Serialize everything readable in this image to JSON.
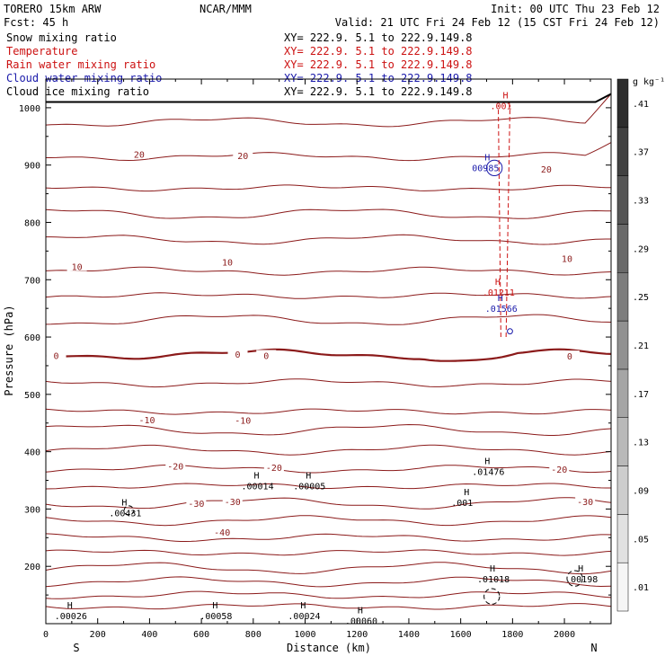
{
  "header": {
    "model": "TORERO  15km ARW",
    "forecast": "Fcst:   45 h",
    "org": "NCAR/MMM",
    "init": "Init: 00 UTC Thu 23 Feb 12",
    "valid": "Valid: 21 UTC Fri 24 Feb 12 (15 CST Fri 24 Feb 12)"
  },
  "legend": [
    {
      "name": "Snow mixing ratio",
      "xy": "XY= 222.9.  5.1 to 222.9.149.8",
      "color": "#000000"
    },
    {
      "name": "Temperature",
      "xy": "XY= 222.9.  5.1 to 222.9.149.8",
      "color": "#cc1111"
    },
    {
      "name": "Rain water mixing ratio",
      "xy": "XY= 222.9.  5.1 to 222.9.149.8",
      "color": "#cc1111"
    },
    {
      "name": "Cloud water mixing ratio",
      "xy": "XY= 222.9.  5.1 to 222.9.149.8",
      "color": "#1a1aaa"
    },
    {
      "name": "Cloud ice mixing ratio",
      "xy": "XY= 222.9.  5.1 to 222.9.149.8",
      "color": "#000000"
    }
  ],
  "chart_data": {
    "type": "cross-section",
    "xlabel": "Distance (km)",
    "ylabel": "Pressure (hPa)",
    "xlim": [
      0,
      2180
    ],
    "ylim": [
      1050,
      100
    ],
    "xticks": [
      0,
      200,
      400,
      600,
      800,
      1000,
      1200,
      1400,
      1600,
      1800,
      2000
    ],
    "yticks": [
      200,
      300,
      400,
      500,
      600,
      700,
      800,
      900,
      1000
    ],
    "left_end_label": "S",
    "right_end_label": "N",
    "colorbar": {
      "unit": "g kg⁻¹",
      "values": [
        0.01,
        0.05,
        0.09,
        0.13,
        0.17,
        0.21,
        0.25,
        0.29,
        0.33,
        0.37,
        0.41
      ],
      "labels": [
        ".01",
        ".05",
        ".09",
        ".13",
        ".17",
        ".21",
        ".25",
        ".29",
        ".33",
        ".37",
        ".41"
      ]
    },
    "temperature_labels": [
      {
        "text": "-40",
        "x": 680,
        "p": 260
      },
      {
        "text": "-30",
        "x": 580,
        "p": 310
      },
      {
        "text": "-30",
        "x": 720,
        "p": 313
      },
      {
        "text": "-30",
        "x": 2080,
        "p": 313
      },
      {
        "text": "-20",
        "x": 500,
        "p": 375
      },
      {
        "text": "-20",
        "x": 880,
        "p": 373
      },
      {
        "text": "-20",
        "x": 1980,
        "p": 370
      },
      {
        "text": "-10",
        "x": 390,
        "p": 456
      },
      {
        "text": "-10",
        "x": 760,
        "p": 455
      },
      {
        "text": "0",
        "x": 40,
        "p": 568
      },
      {
        "text": "0",
        "x": 740,
        "p": 570
      },
      {
        "text": "0",
        "x": 850,
        "p": 568
      },
      {
        "text": "0",
        "x": 2020,
        "p": 567
      },
      {
        "text": "10",
        "x": 120,
        "p": 723
      },
      {
        "text": "10",
        "x": 700,
        "p": 731
      },
      {
        "text": "10",
        "x": 2010,
        "p": 737
      },
      {
        "text": "20",
        "x": 360,
        "p": 919
      },
      {
        "text": "20",
        "x": 760,
        "p": 917
      },
      {
        "text": "20",
        "x": 1930,
        "p": 893
      }
    ],
    "temperature_contours": [
      {
        "p": 130
      },
      {
        "p": 150
      },
      {
        "p": 173
      },
      {
        "p": 197
      },
      {
        "p": 224
      },
      {
        "p": 250
      },
      {
        "p": 280
      },
      {
        "p": 310
      },
      {
        "p": 340
      },
      {
        "p": 370
      },
      {
        "p": 403
      },
      {
        "p": 438
      },
      {
        "p": 470
      },
      {
        "p": 520
      },
      {
        "p": 570,
        "freezing": true
      },
      {
        "p": 630
      },
      {
        "p": 672
      },
      {
        "p": 715
      },
      {
        "p": 770
      },
      {
        "p": 815
      },
      {
        "p": 860
      },
      {
        "p": 915
      },
      {
        "p": 975
      }
    ],
    "maxima": [
      {
        "text": ".00026",
        "x": 110,
        "p": 116,
        "color": "#000000"
      },
      {
        "text": ".00058",
        "x": 670,
        "p": 116,
        "color": "#000000"
      },
      {
        "text": ".00024",
        "x": 1010,
        "p": 116,
        "color": "#000000"
      },
      {
        "text": ".00060",
        "x": 1230,
        "p": 107,
        "color": "#000000"
      },
      {
        "text": ".01018",
        "x": 1740,
        "p": 180,
        "color": "#000000"
      },
      {
        "text": ".00198",
        "x": 2080,
        "p": 180,
        "color": "#000000"
      },
      {
        "text": ".00431",
        "x": 320,
        "p": 295,
        "color": "#000000"
      },
      {
        "text": ".00014",
        "x": 830,
        "p": 342,
        "color": "#000000"
      },
      {
        "text": ".00005",
        "x": 1030,
        "p": 342,
        "color": "#000000"
      },
      {
        "text": ".001",
        "x": 1640,
        "p": 313,
        "color": "#000000"
      },
      {
        "text": ".01476",
        "x": 1720,
        "p": 367,
        "color": "#000000"
      },
      {
        "text": ".01566",
        "x": 1770,
        "p": 652,
        "color": "#1a1aaa"
      },
      {
        "text": ".01211",
        "x": 1760,
        "p": 680,
        "color": "#cc1111"
      },
      {
        "text": "00985",
        "x": 1720,
        "p": 897,
        "color": "#1a1aaa"
      },
      {
        "text": ".001",
        "x": 1790,
        "p": 1005,
        "color": "#cc1111"
      }
    ]
  }
}
